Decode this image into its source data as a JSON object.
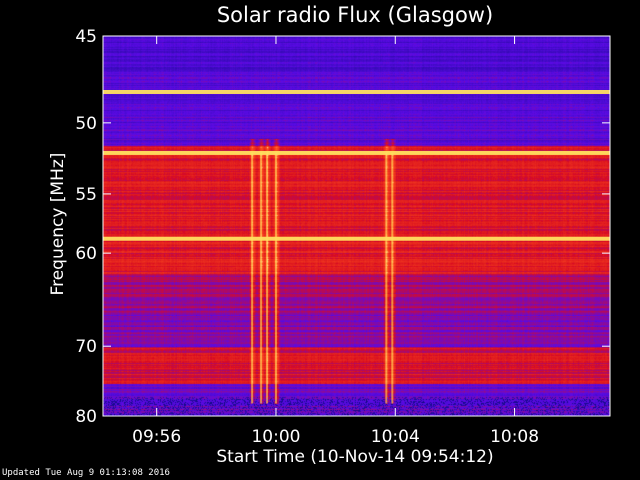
{
  "chart_data": {
    "type": "heatmap",
    "title": "Solar radio Flux (Glasgow)",
    "xlabel": "Start Time (10-Nov-14 09:54:12)",
    "ylabel": "Frequency [MHz]",
    "x_ticks": [
      "09:56",
      "10:00",
      "10:04",
      "10:08"
    ],
    "x_tick_minutes": [
      1.8,
      5.8,
      9.8,
      13.8
    ],
    "xlim_minutes": [
      0,
      17
    ],
    "y_ticks": [
      45,
      50,
      55,
      60,
      70,
      80
    ],
    "ylim": [
      45,
      80
    ],
    "y_scale": "reciprocal",
    "colors": {
      "background": "#000000",
      "low": "#1010c0",
      "mid": "#c01010",
      "high": "#ffe060"
    },
    "bright_lines_mhz": [
      48.1,
      52.0,
      58.7
    ],
    "bursts_minutes": [
      5.0,
      5.3,
      5.5,
      5.8,
      9.5,
      9.7
    ]
  },
  "footer": "Updated Tue Aug  9 01:13:08 2016"
}
